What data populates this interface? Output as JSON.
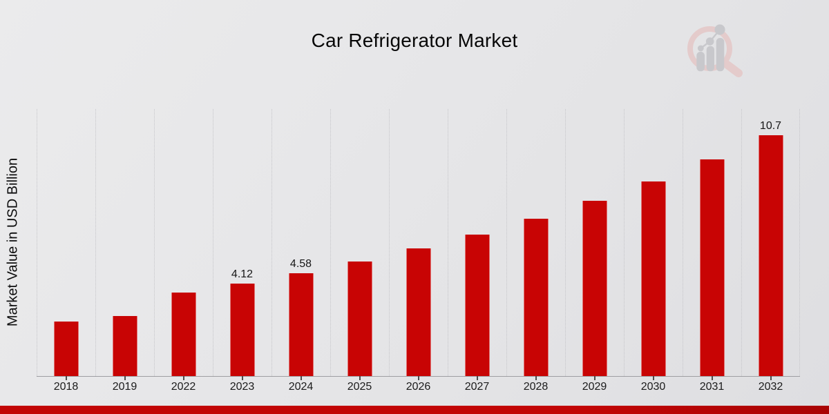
{
  "header": {
    "title": "Car Refrigerator Market"
  },
  "watermark": {
    "name": "market-research-future-logo",
    "ring_color": "#e4cbcb",
    "glyph_color": "#c8c8cc"
  },
  "footer": {
    "stripe_color": "#c20505",
    "stripe_color_dark": "#a90404"
  },
  "chart_data": {
    "type": "bar",
    "title": "Car Refrigerator Market",
    "xlabel": "",
    "ylabel": "Market Value in USD Billion",
    "categories": [
      "2018",
      "2019",
      "2022",
      "2023",
      "2024",
      "2025",
      "2026",
      "2027",
      "2028",
      "2029",
      "2030",
      "2031",
      "2032"
    ],
    "values": [
      2.41,
      2.66,
      3.72,
      4.12,
      4.58,
      5.09,
      5.66,
      6.3,
      7.0,
      7.79,
      8.66,
      9.63,
      10.7
    ],
    "data_labels": {
      "2023": "4.12",
      "2024": "4.58",
      "2032": "10.7"
    },
    "ylim": [
      0,
      11.87
    ],
    "grid": "vertical-dotted",
    "legend": "none",
    "bar_color": "#c80404"
  }
}
